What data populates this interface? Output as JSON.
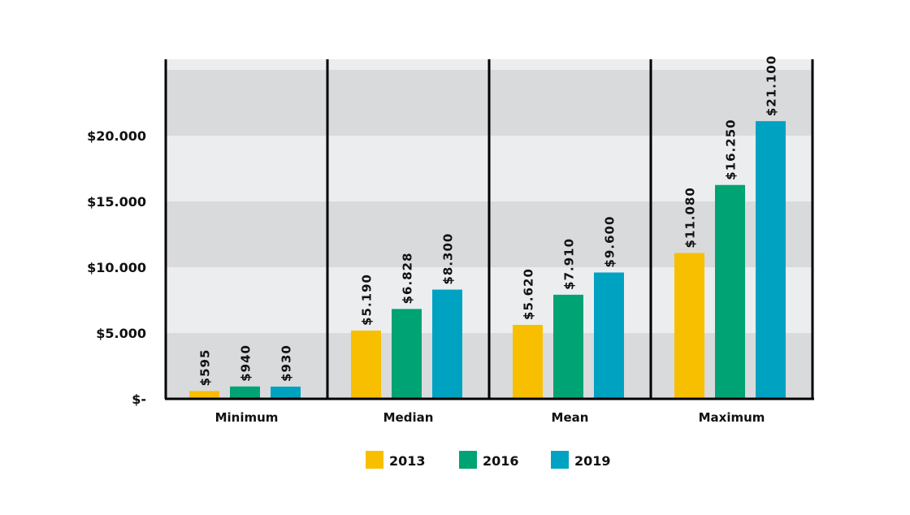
{
  "chart_data": {
    "type": "bar",
    "title": "",
    "xlabel": "",
    "ylabel": "",
    "categories": [
      "Minimum",
      "Median",
      "Mean",
      "Maximum"
    ],
    "series": [
      {
        "name": "2013",
        "color": "#f8bf00",
        "values": [
          595,
          5190,
          5620,
          11080
        ],
        "labels": [
          "$595",
          "$5.190",
          "$5.620",
          "$11.080"
        ]
      },
      {
        "name": "2016",
        "color": "#00a374",
        "values": [
          940,
          6828,
          7910,
          16250
        ],
        "labels": [
          "$940",
          "$6.828",
          "$7.910",
          "$16.250"
        ]
      },
      {
        "name": "2019",
        "color": "#00a2c2",
        "values": [
          930,
          8300,
          9600,
          21100
        ],
        "labels": [
          "$930",
          "$8.300",
          "$9.600",
          "$21.100"
        ]
      }
    ],
    "yticks": [
      0,
      5000,
      10000,
      15000,
      20000
    ],
    "ytick_labels": [
      "$-",
      "$5.000",
      "$10.000",
      "$15.000",
      "$20.000"
    ],
    "ylim": [
      0,
      25800
    ],
    "grid": "alternating horizontal bands",
    "legend": "bottom-center"
  }
}
